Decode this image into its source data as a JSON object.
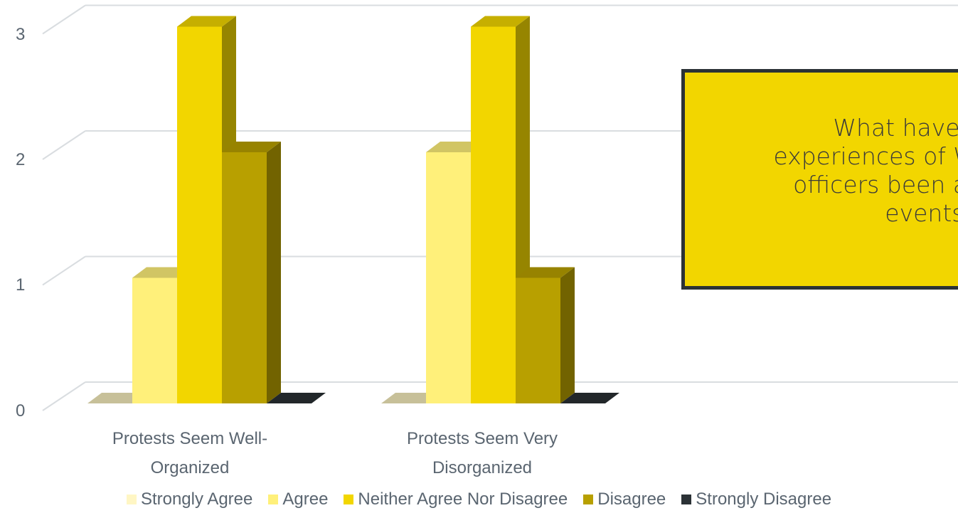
{
  "chart_data": {
    "type": "bar",
    "categories": [
      "Protests Seem Well-Organized",
      "Protests Seem Very Disorganized"
    ],
    "category_lines": [
      [
        "Protests Seem Well-",
        "Organized"
      ],
      [
        "Protests Seem Very",
        "Disorganized"
      ]
    ],
    "series": [
      {
        "name": "Strongly Agree",
        "values": [
          0,
          0
        ],
        "color": "#fff6c4"
      },
      {
        "name": "Agree",
        "values": [
          1,
          2
        ],
        "color": "#fff07a"
      },
      {
        "name": "Neither Agree Nor Disagree",
        "values": [
          3,
          3
        ],
        "color": "#f2d600"
      },
      {
        "name": "Disagree",
        "values": [
          2,
          1
        ],
        "color": "#b8a000"
      },
      {
        "name": "Strongly Disagree",
        "values": [
          0,
          0
        ],
        "color": "#2b3236"
      }
    ],
    "ylim": [
      0,
      3
    ],
    "yticks": [
      "0",
      "1",
      "2",
      "3"
    ],
    "grid": true,
    "legend_position": "bottom",
    "style": "3d-column"
  },
  "callout": {
    "text": "What have t\nexperiences of W\nofficers been at\nevents?"
  }
}
